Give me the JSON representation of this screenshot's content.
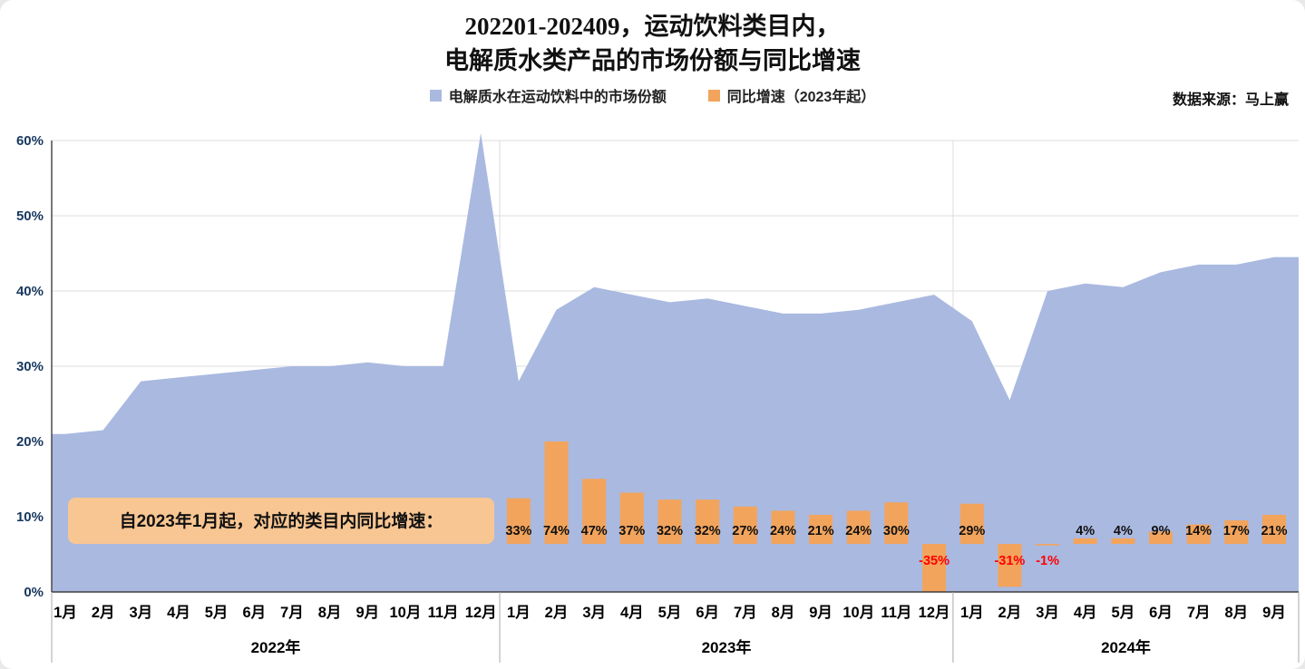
{
  "title": {
    "line1": "202201-202409，运动饮料类目内，",
    "line2": "电解质水类产品的市场份额与同比增速"
  },
  "legend": [
    {
      "label": "电解质水在运动饮料中的市场份额",
      "color": "#aab9e0"
    },
    {
      "label": "同比增速（2023年起）",
      "color": "#f2a45c"
    }
  ],
  "source": "数据来源：马上赢",
  "annotation": "自2023年1月起，对应的类目内同比增速：",
  "chart_data": {
    "type": [
      "area",
      "bar"
    ],
    "title": "202201-202409，运动饮料类目内，电解质水类产品的市场份额与同比增速",
    "ylim": [
      0,
      60
    ],
    "y_ticks": [
      0,
      10,
      20,
      30,
      40,
      50,
      60
    ],
    "grid": "horizontal",
    "legend_position": "top-center",
    "months": [
      "1月",
      "2月",
      "3月",
      "4月",
      "5月",
      "6月",
      "7月",
      "8月",
      "9月",
      "10月",
      "11月",
      "12月",
      "1月",
      "2月",
      "3月",
      "4月",
      "5月",
      "6月",
      "7月",
      "8月",
      "9月",
      "10月",
      "11月",
      "12月",
      "1月",
      "2月",
      "3月",
      "4月",
      "5月",
      "6月",
      "7月",
      "8月",
      "9月"
    ],
    "years": [
      {
        "label": "2022年",
        "months": 12
      },
      {
        "label": "2023年",
        "months": 12
      },
      {
        "label": "2024年",
        "months": 9
      }
    ],
    "share": {
      "name": "电解质水在运动饮料中的市场份额",
      "unit": "%",
      "values": [
        21,
        21.5,
        28,
        28.5,
        29,
        29.5,
        30,
        30,
        30.5,
        30,
        30,
        61,
        28,
        37.5,
        40.5,
        39.5,
        38.5,
        39,
        38,
        37,
        37,
        37.5,
        38.5,
        39.5,
        36,
        25.5,
        40,
        41,
        40.5,
        42.5,
        43.5,
        43.5,
        44.5
      ]
    },
    "growth": {
      "name": "同比增速（2023年起）",
      "unit": "%",
      "start_index": 12,
      "values": [
        33,
        74,
        47,
        37,
        32,
        32,
        27,
        24,
        21,
        24,
        30,
        -35,
        29,
        -31,
        -1,
        4,
        4,
        9,
        14,
        17,
        21
      ]
    },
    "colors": {
      "share": "#aab9e0",
      "growth": "#f2a45c",
      "annotation_bg": "#f8c693",
      "grid": "#dcdcdc",
      "axis": "#3f3f3f",
      "axis_label": "#17375e",
      "negative_label": "#ff0000"
    }
  }
}
